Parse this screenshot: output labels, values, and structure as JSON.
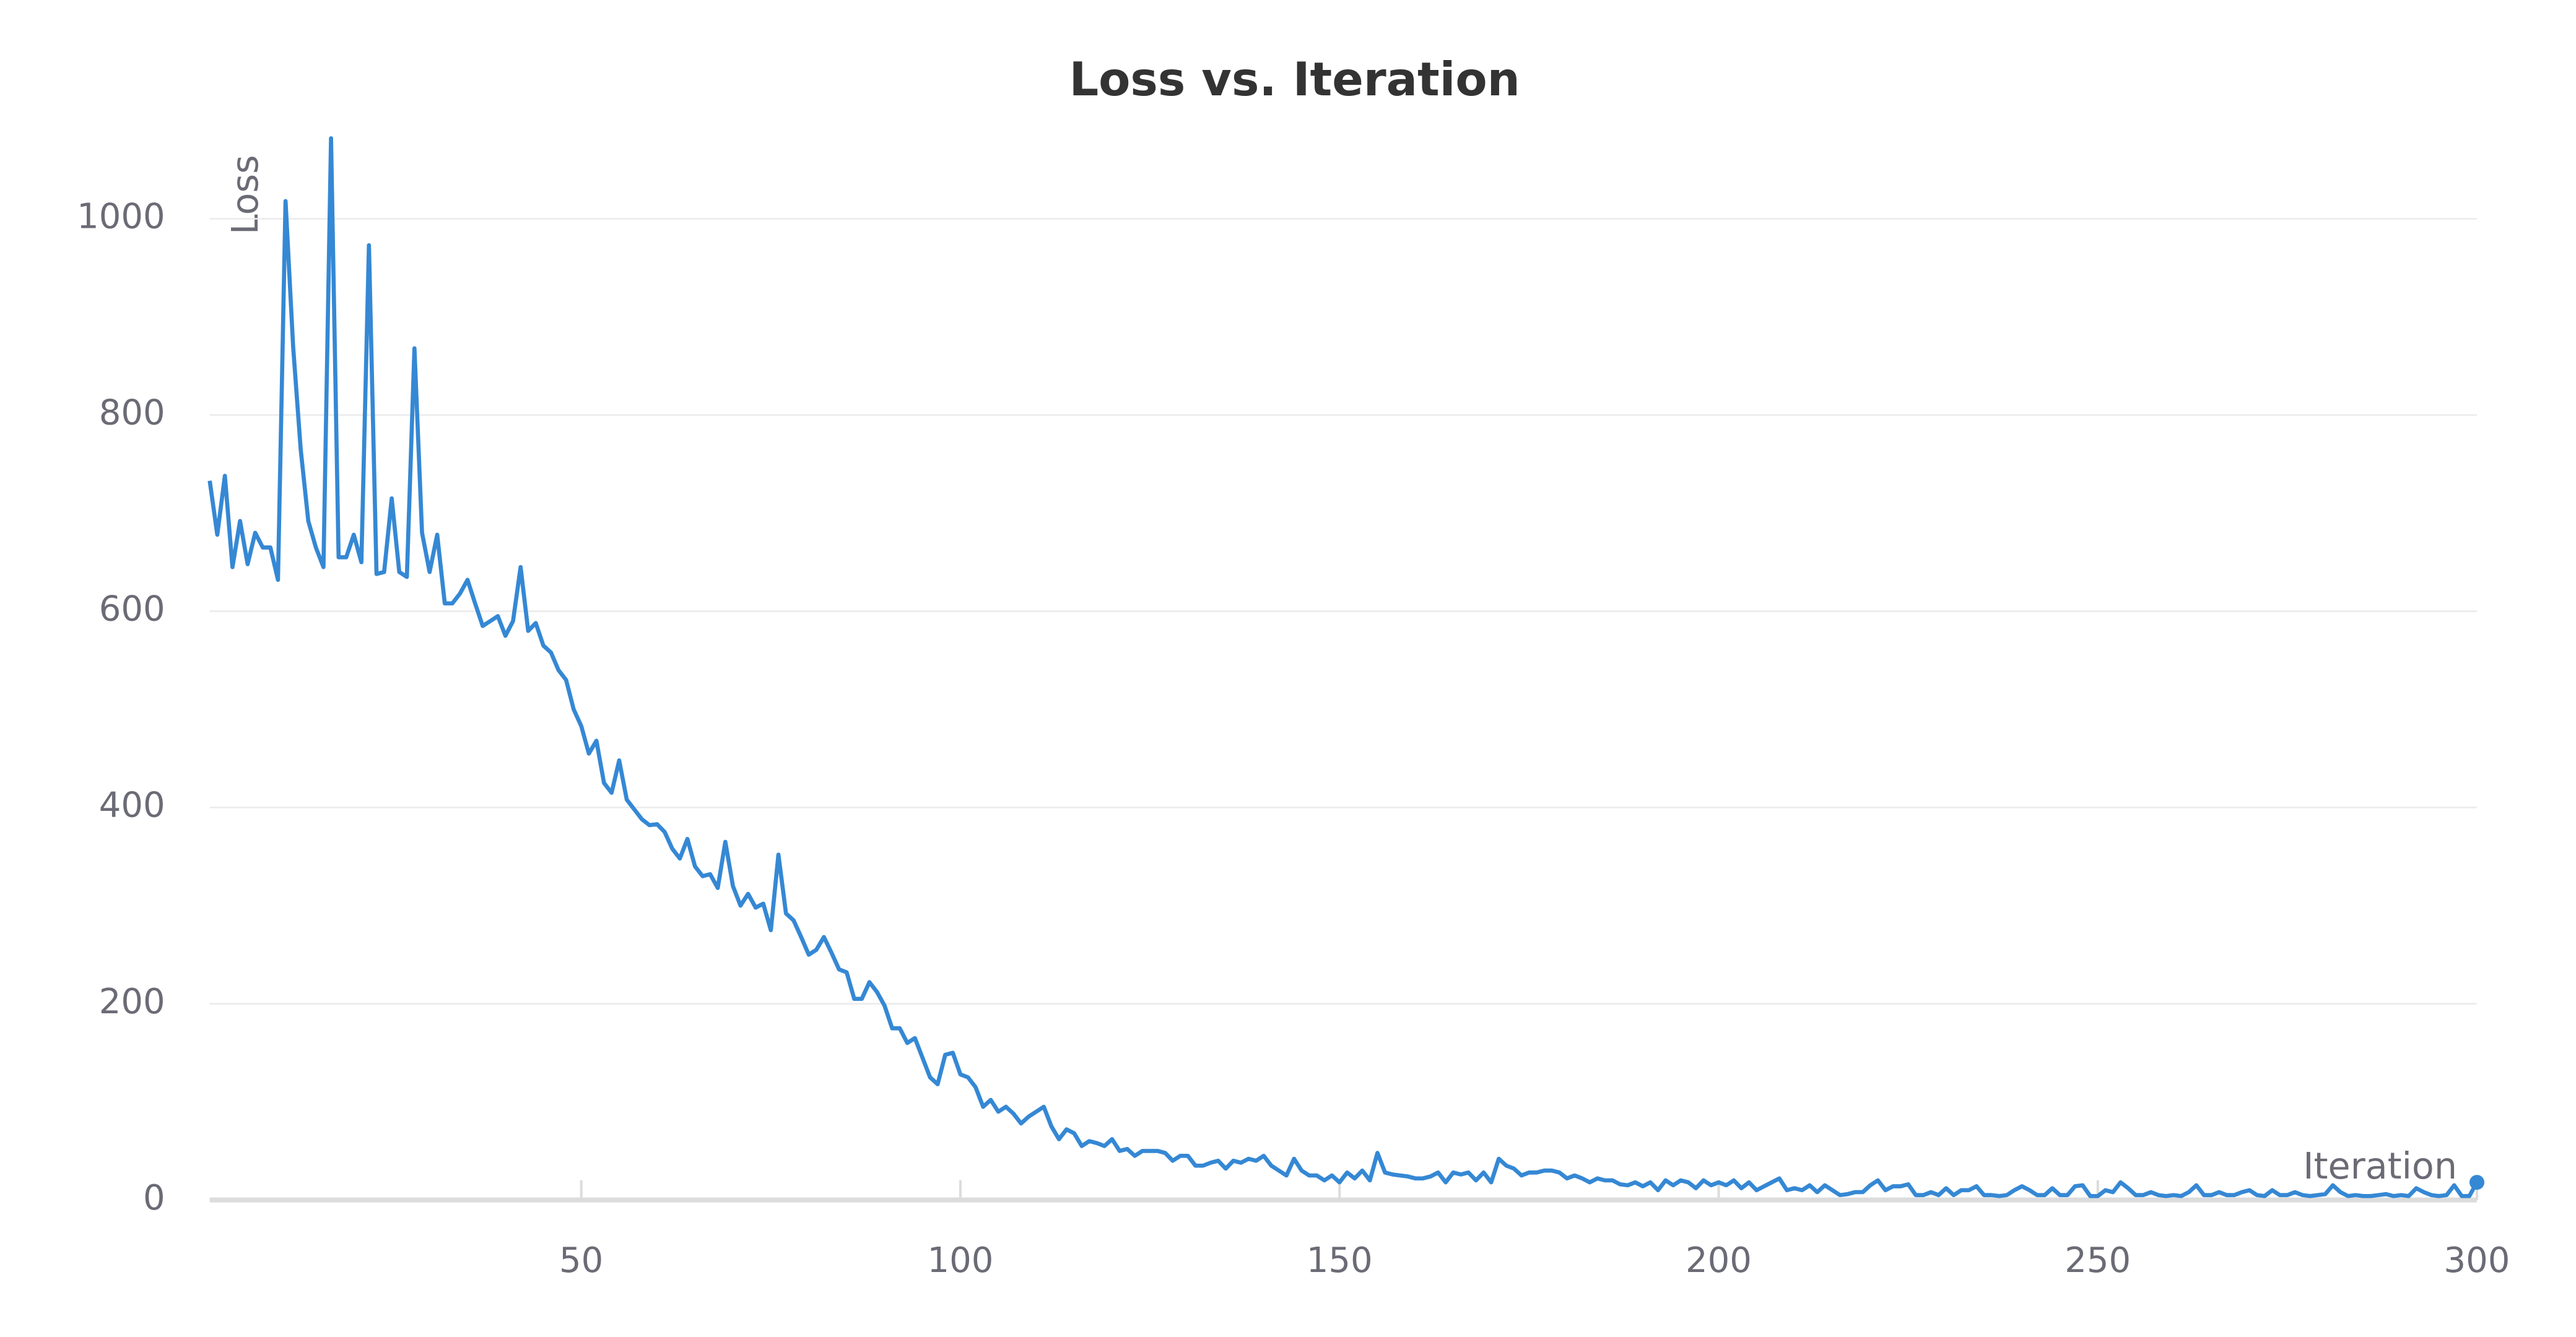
{
  "chart_data": {
    "type": "line",
    "title": "Loss vs. Iteration",
    "y_label": "Loss",
    "x_label": "Iteration",
    "color": "#3588d4",
    "grid": true,
    "xlim": [
      1,
      300
    ],
    "xticks": [
      50,
      100,
      150,
      200,
      250,
      300
    ],
    "ylim": [
      0,
      1085
    ],
    "yticks": [
      0,
      200,
      400,
      600,
      800,
      1000
    ],
    "x": [
      1,
      2,
      3,
      4,
      5,
      6,
      7,
      8,
      9,
      10,
      11,
      12,
      13,
      14,
      15,
      16,
      17,
      18,
      19,
      20,
      21,
      22,
      23,
      24,
      25,
      26,
      27,
      28,
      29,
      30,
      31,
      32,
      33,
      34,
      35,
      36,
      37,
      38,
      39,
      40,
      41,
      42,
      43,
      44,
      45,
      46,
      47,
      48,
      49,
      50,
      51,
      52,
      53,
      54,
      55,
      56,
      57,
      58,
      59,
      60,
      61,
      62,
      63,
      64,
      65,
      66,
      67,
      68,
      69,
      70,
      71,
      72,
      73,
      74,
      75,
      76,
      77,
      78,
      79,
      80,
      81,
      82,
      83,
      84,
      85,
      86,
      87,
      88,
      89,
      90,
      91,
      92,
      93,
      94,
      95,
      96,
      97,
      98,
      99,
      100,
      101,
      102,
      103,
      104,
      105,
      106,
      107,
      108,
      109,
      110,
      111,
      112,
      113,
      114,
      115,
      116,
      117,
      118,
      119,
      120,
      121,
      122,
      123,
      124,
      125,
      126,
      127,
      128,
      129,
      130,
      131,
      132,
      133,
      134,
      135,
      136,
      137,
      138,
      139,
      140,
      141,
      142,
      143,
      144,
      145,
      146,
      147,
      148,
      149,
      150,
      151,
      152,
      153,
      154,
      155,
      156,
      157,
      158,
      159,
      160,
      161,
      162,
      163,
      164,
      165,
      166,
      167,
      168,
      169,
      170,
      171,
      172,
      173,
      174,
      175,
      176,
      177,
      178,
      179,
      180,
      181,
      182,
      183,
      184,
      185,
      186,
      187,
      188,
      189,
      190,
      191,
      192,
      193,
      194,
      195,
      196,
      197,
      198,
      199,
      200,
      201,
      202,
      203,
      204,
      205,
      206,
      207,
      208,
      209,
      210,
      211,
      212,
      213,
      214,
      215,
      216,
      217,
      218,
      219,
      220,
      221,
      222,
      223,
      224,
      225,
      226,
      227,
      228,
      229,
      230,
      231,
      232,
      233,
      234,
      235,
      236,
      237,
      238,
      239,
      240,
      241,
      242,
      243,
      244,
      245,
      246,
      247,
      248,
      249,
      250,
      251,
      252,
      253,
      254,
      255,
      256,
      257,
      258,
      259,
      260,
      261,
      262,
      263,
      264,
      265,
      266,
      267,
      268,
      269,
      270,
      271,
      272,
      273,
      274,
      275,
      276,
      277,
      278,
      279,
      280,
      281,
      282,
      283,
      284,
      285,
      286,
      287,
      288,
      289,
      290,
      291,
      292,
      293,
      294,
      295,
      296,
      297,
      298,
      299,
      300
    ],
    "values": [
      733,
      678,
      738,
      645,
      692,
      648,
      680,
      665,
      665,
      632,
      1018,
      870,
      765,
      692,
      665,
      645,
      1082,
      655,
      655,
      678,
      650,
      973,
      638,
      640,
      715,
      640,
      635,
      868,
      680,
      640,
      678,
      608,
      608,
      618,
      632,
      608,
      585,
      590,
      595,
      575,
      590,
      645,
      580,
      588,
      565,
      558,
      540,
      530,
      500,
      483,
      455,
      468,
      425,
      415,
      448,
      408,
      398,
      388,
      382,
      383,
      375,
      358,
      348,
      368,
      340,
      330,
      332,
      318,
      365,
      320,
      300,
      312,
      298,
      302,
      275,
      352,
      292,
      285,
      268,
      250,
      255,
      268,
      252,
      235,
      232,
      205,
      205,
      222,
      212,
      198,
      175,
      175,
      160,
      165,
      145,
      125,
      118,
      148,
      150,
      128,
      125,
      115,
      95,
      102,
      90,
      95,
      88,
      78,
      85,
      90,
      95,
      75,
      62,
      72,
      68,
      55,
      60,
      58,
      55,
      62,
      50,
      52,
      45,
      50,
      50,
      50,
      48,
      40,
      45,
      45,
      35,
      35,
      38,
      40,
      32,
      40,
      38,
      42,
      40,
      45,
      35,
      30,
      25,
      42,
      30,
      25,
      25,
      20,
      25,
      18,
      28,
      22,
      30,
      20,
      48,
      28,
      26,
      25,
      24,
      22,
      22,
      24,
      28,
      18,
      28,
      26,
      28,
      20,
      28,
      18,
      42,
      35,
      32,
      25,
      28,
      28,
      30,
      30,
      28,
      22,
      25,
      22,
      18,
      22,
      20,
      20,
      16,
      15,
      18,
      14,
      18,
      10,
      20,
      15,
      20,
      18,
      12,
      20,
      15,
      18,
      15,
      20,
      12,
      18,
      10,
      14,
      18,
      22,
      10,
      12,
      10,
      15,
      8,
      15,
      10,
      5,
      6,
      8,
      8,
      15,
      20,
      10,
      14,
      14,
      16,
      5,
      5,
      8,
      5,
      12,
      5,
      10,
      10,
      14,
      5,
      5,
      4,
      5,
      10,
      14,
      10,
      5,
      5,
      12,
      5,
      5,
      14,
      15,
      4,
      4,
      10,
      8,
      18,
      12,
      5,
      5,
      8,
      5,
      4,
      5,
      4,
      8,
      15,
      5,
      5,
      8,
      5,
      5,
      8,
      10,
      5,
      4,
      10,
      5,
      5,
      8,
      5,
      4,
      5,
      6,
      15,
      8,
      4,
      5,
      4,
      4,
      5,
      6,
      4,
      5,
      4,
      12,
      8,
      5,
      4,
      5,
      15,
      4,
      4,
      18
    ]
  }
}
